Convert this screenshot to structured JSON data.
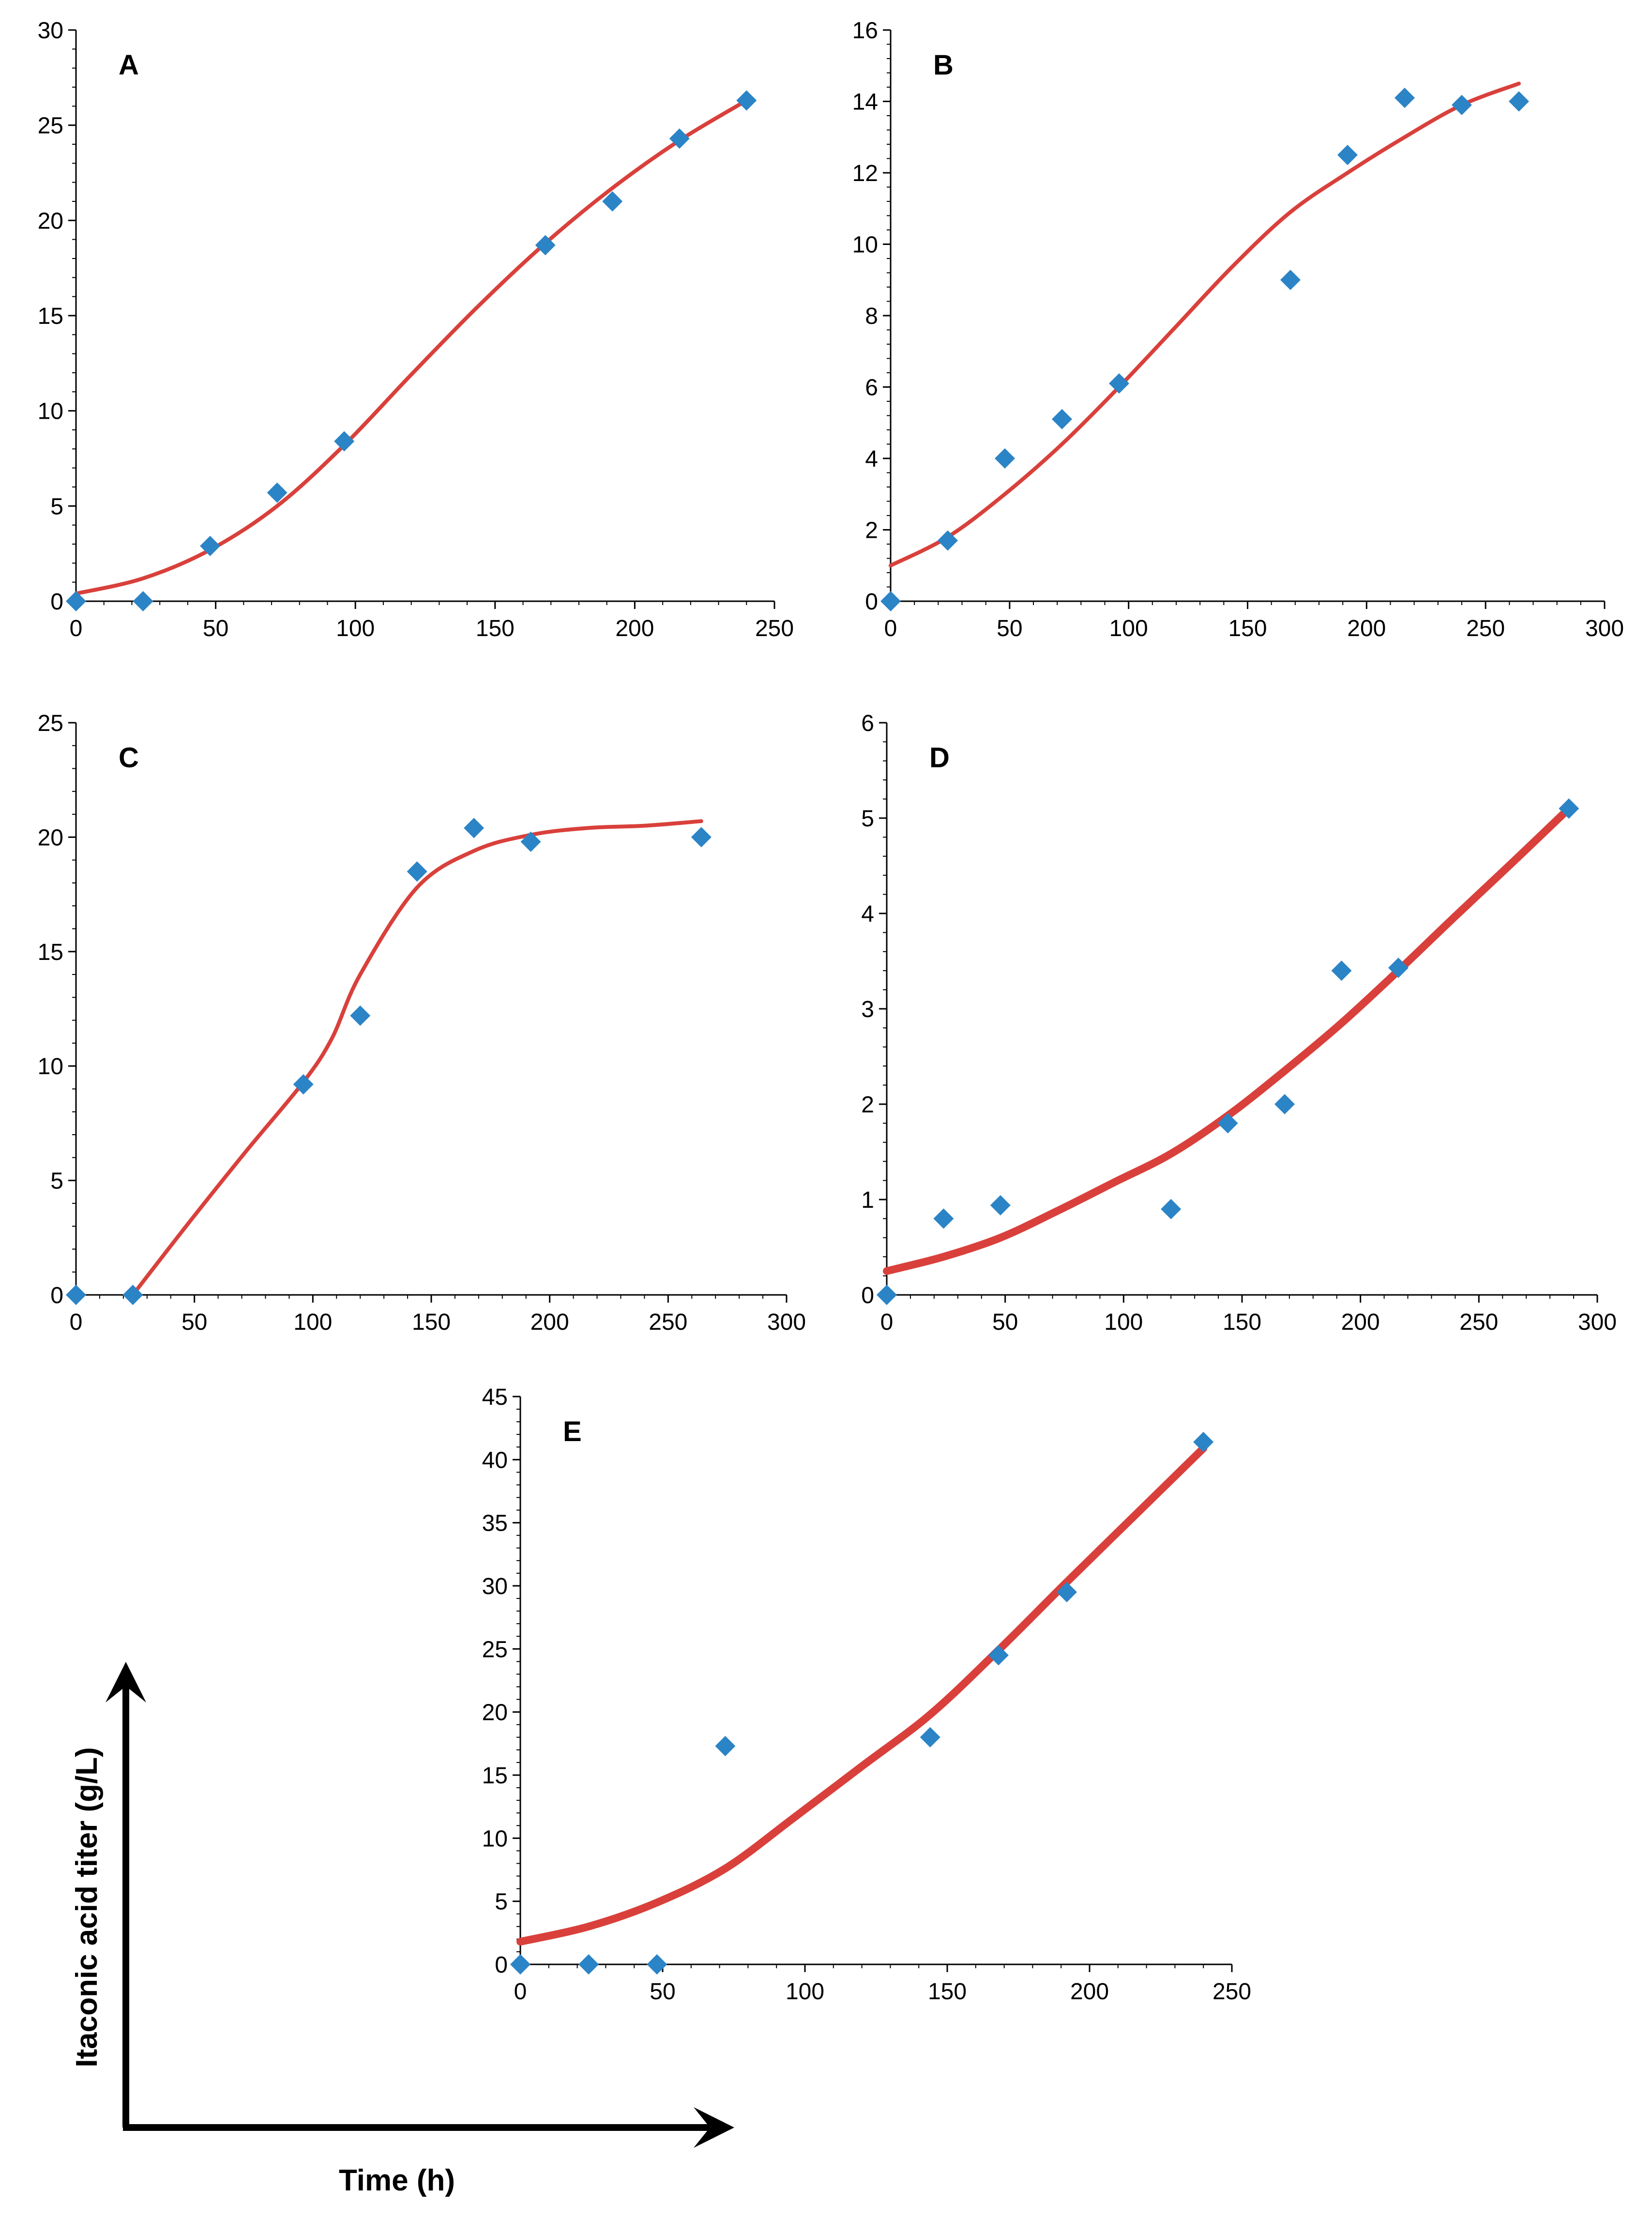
{
  "figure": {
    "y_axis_label": "Itaconic acid titer (g/L)",
    "x_axis_label": "Time (h)"
  },
  "colors": {
    "points": "#2B84C6",
    "fit_line": "#D9403B",
    "axes": "#000000"
  },
  "chart_data": [
    {
      "type": "scatter",
      "panel": "A",
      "xlim": [
        0,
        250
      ],
      "xticks": [
        0,
        50,
        100,
        150,
        200,
        250
      ],
      "ylim": [
        0,
        30
      ],
      "yticks": [
        0,
        5,
        10,
        15,
        20,
        25,
        30
      ],
      "series": [
        {
          "name": "observed",
          "kind": "points",
          "x": [
            0,
            24,
            48,
            72,
            96,
            168,
            192,
            216,
            240
          ],
          "y": [
            0,
            0,
            2.9,
            5.7,
            8.4,
            18.7,
            21.0,
            24.3,
            26.3
          ]
        },
        {
          "name": "model fit",
          "kind": "line",
          "x": [
            0,
            24,
            48,
            72,
            96,
            120,
            144,
            168,
            192,
            216,
            240
          ],
          "y": [
            0.4,
            1.2,
            2.7,
            5.0,
            8.2,
            11.9,
            15.5,
            18.8,
            21.7,
            24.2,
            26.3
          ]
        }
      ]
    },
    {
      "type": "scatter",
      "panel": "B",
      "xlim": [
        0,
        300
      ],
      "xticks": [
        0,
        50,
        100,
        150,
        200,
        250,
        300
      ],
      "ylim": [
        0,
        16
      ],
      "yticks": [
        0,
        2,
        4,
        6,
        8,
        10,
        12,
        14,
        16
      ],
      "series": [
        {
          "name": "observed",
          "kind": "points",
          "x": [
            0,
            24,
            48,
            72,
            96,
            168,
            192,
            216,
            240,
            264
          ],
          "y": [
            0,
            1.7,
            4.0,
            5.1,
            6.1,
            9.0,
            12.5,
            14.1,
            13.9,
            14.0
          ]
        },
        {
          "name": "model fit",
          "kind": "line",
          "x": [
            0,
            24,
            48,
            72,
            96,
            120,
            144,
            168,
            192,
            216,
            240,
            264
          ],
          "y": [
            1.0,
            1.8,
            3.0,
            4.4,
            6.0,
            7.7,
            9.4,
            10.9,
            12.0,
            13.0,
            13.9,
            14.5
          ]
        }
      ]
    },
    {
      "type": "scatter",
      "panel": "C",
      "xlim": [
        0,
        300
      ],
      "xticks": [
        0,
        50,
        100,
        150,
        200,
        250,
        300
      ],
      "ylim": [
        0,
        25
      ],
      "yticks": [
        0,
        5,
        10,
        15,
        20,
        25
      ],
      "series": [
        {
          "name": "observed",
          "kind": "points",
          "x": [
            0,
            24,
            96,
            120,
            144,
            168,
            192,
            264
          ],
          "y": [
            0,
            0,
            9.2,
            12.2,
            18.5,
            20.4,
            19.8,
            20.0
          ]
        },
        {
          "name": "model fit",
          "kind": "line",
          "x": [
            24,
            48,
            72,
            96,
            108,
            120,
            144,
            168,
            192,
            216,
            240,
            264
          ],
          "y": [
            0,
            3.2,
            6.3,
            9.3,
            11.2,
            14.0,
            17.8,
            19.4,
            20.1,
            20.4,
            20.5,
            20.7
          ]
        }
      ]
    },
    {
      "type": "scatter",
      "panel": "D",
      "xlim": [
        0,
        300
      ],
      "xticks": [
        0,
        50,
        100,
        150,
        200,
        250,
        300
      ],
      "ylim": [
        0,
        6
      ],
      "yticks": [
        0,
        1,
        2,
        3,
        4,
        5,
        6
      ],
      "series": [
        {
          "name": "observed",
          "kind": "points",
          "x": [
            0,
            24,
            48,
            120,
            144,
            168,
            192,
            216,
            288
          ],
          "y": [
            0,
            0.8,
            0.94,
            0.9,
            1.8,
            2.0,
            3.4,
            3.43,
            5.1
          ]
        },
        {
          "name": "model fit",
          "kind": "line",
          "x": [
            0,
            24,
            48,
            72,
            96,
            120,
            144,
            168,
            192,
            216,
            240,
            264,
            288
          ],
          "y": [
            0.25,
            0.4,
            0.6,
            0.88,
            1.18,
            1.48,
            1.88,
            2.35,
            2.85,
            3.4,
            3.97,
            4.53,
            5.1
          ]
        }
      ]
    },
    {
      "type": "scatter",
      "panel": "E",
      "xlim": [
        0,
        250
      ],
      "xticks": [
        0,
        50,
        100,
        150,
        200,
        250
      ],
      "ylim": [
        0,
        45
      ],
      "yticks": [
        0,
        5,
        10,
        15,
        20,
        25,
        30,
        35,
        40,
        45
      ],
      "series": [
        {
          "name": "observed",
          "kind": "points",
          "x": [
            0,
            24,
            48,
            72,
            144,
            168,
            192,
            240
          ],
          "y": [
            0,
            0,
            0,
            17.3,
            18.0,
            24.5,
            29.5,
            41.4
          ]
        },
        {
          "name": "model fit",
          "kind": "line",
          "x": [
            0,
            24,
            48,
            72,
            96,
            120,
            144,
            168,
            192,
            216,
            240
          ],
          "y": [
            1.8,
            3.0,
            4.9,
            7.6,
            11.6,
            15.7,
            19.8,
            24.9,
            30.3,
            35.6,
            40.9
          ]
        }
      ]
    }
  ]
}
